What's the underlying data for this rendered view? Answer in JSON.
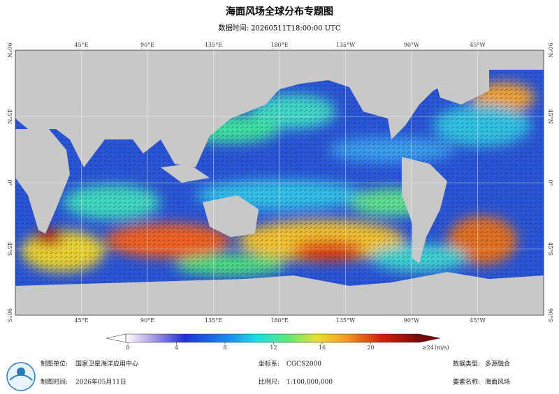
{
  "header": {
    "title": "海面风场全球分布专题图",
    "subtitle": "数据时间: 20260511T18:00:00 UTC"
  },
  "map": {
    "lon_labels": [
      "45°E",
      "90°E",
      "135°E",
      "180°E",
      "135°W",
      "90°W",
      "45°W"
    ],
    "lat_labels": [
      "90°N",
      "45°N",
      "0°",
      "45°S",
      "90°S"
    ]
  },
  "colorbar": {
    "range": [
      0,
      24
    ],
    "ticks": [
      0,
      4,
      8,
      12,
      16,
      20
    ],
    "max_label": "≥24",
    "unit": "(m/s)"
  },
  "footer": {
    "unit_label": "制图单位:",
    "unit": "国家卫星海洋应用中心",
    "crs_label": "坐标系:",
    "crs": "CGCS2000",
    "type_label": "数据类型:",
    "type": "多源融合",
    "date_label": "制图时间:",
    "date": "2026年05月11日",
    "scale_label": "比例尺:",
    "scale": "1:100,000,000",
    "element_label": "要素名称:",
    "element": "海面风场"
  }
}
